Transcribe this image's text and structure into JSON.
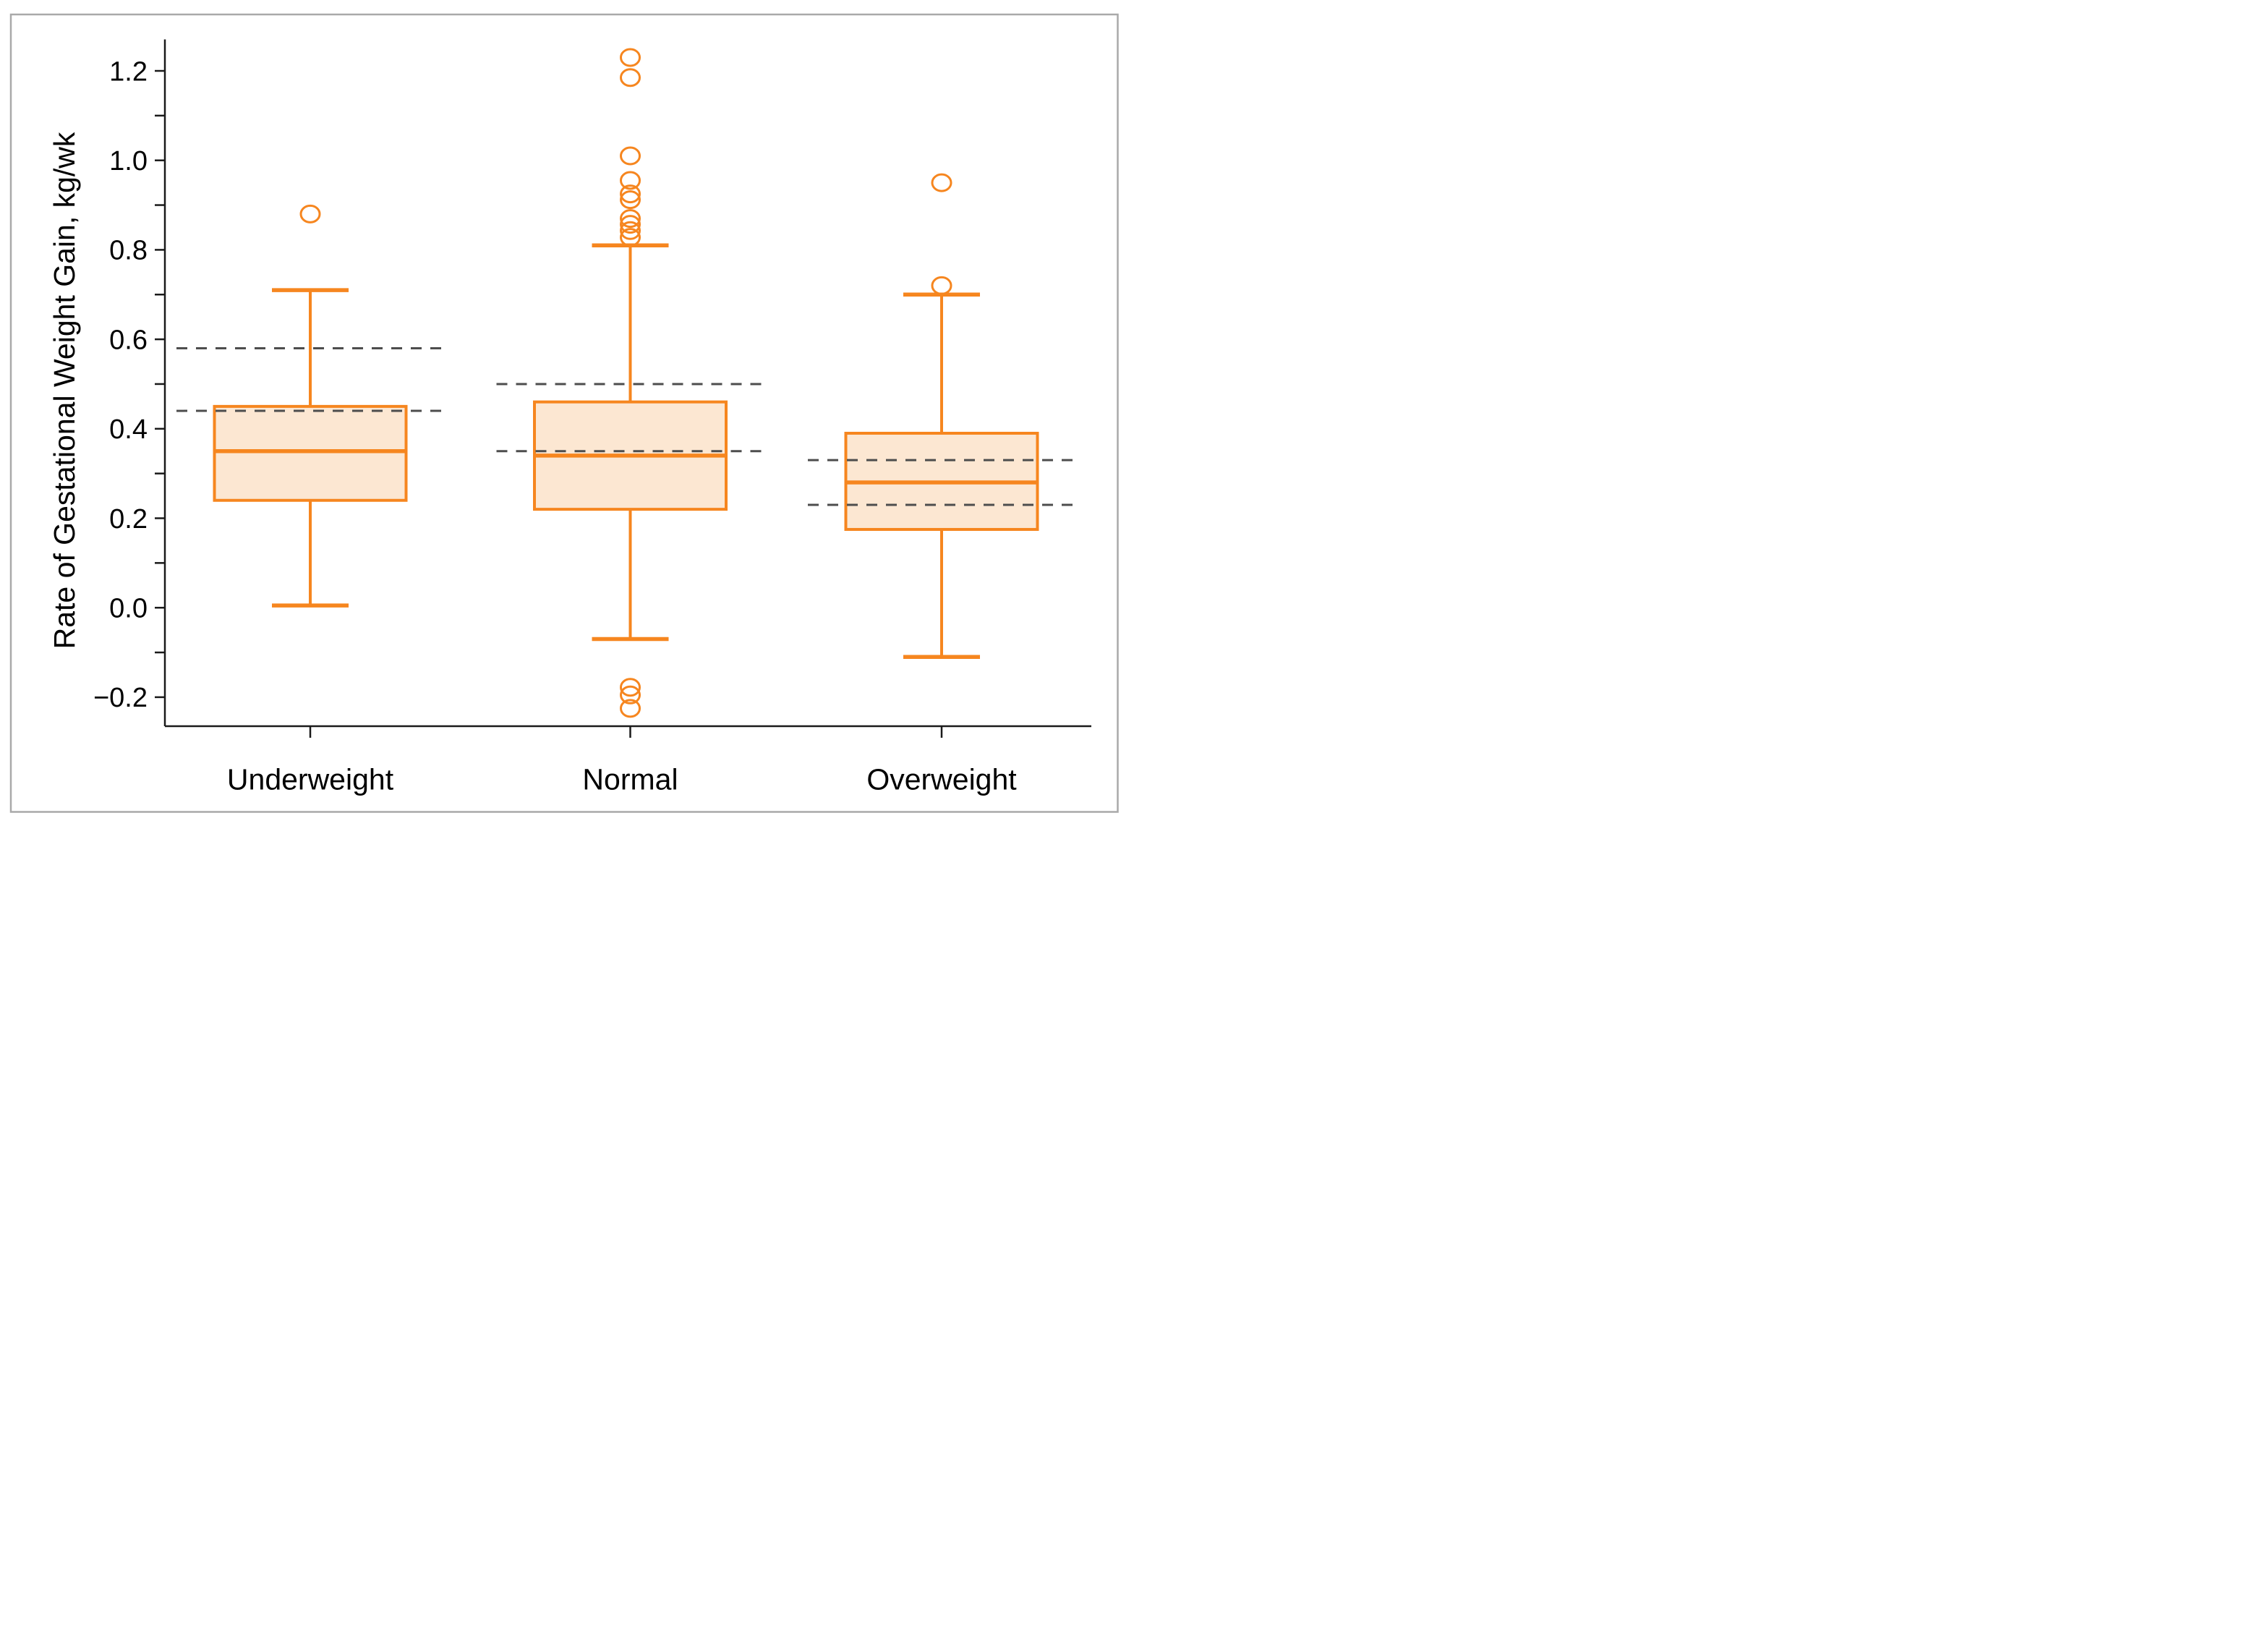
{
  "figure": {
    "background": "#ffffff",
    "border_color": "#a9a9a9"
  },
  "chart_data": {
    "type": "boxplot",
    "title": "",
    "xlabel": "",
    "ylabel": "Rate of Gestational Weight Gain, kg/wk",
    "categories": [
      "Underweight",
      "Normal",
      "Overweight"
    ],
    "ylim": [
      -0.27,
      1.27
    ],
    "grid": false,
    "legend": "none",
    "ytick_labels": [
      "1.2",
      "1.0",
      "0.8",
      "0.6",
      "0.4",
      "0.2",
      "0.0",
      "−0.2"
    ],
    "ytick_values": [
      1.2,
      1.0,
      0.8,
      0.6,
      0.4,
      0.2,
      0.0,
      -0.2
    ],
    "ytick_minor_values": [
      1.1,
      0.9,
      0.7,
      0.5,
      0.3,
      0.1,
      -0.1
    ],
    "series": [
      {
        "category": "Underweight",
        "q1": 0.24,
        "median": 0.35,
        "q3": 0.45,
        "whisker_low": 0.005,
        "whisker_high": 0.71,
        "outliers": [
          0.88
        ],
        "guideline_low": 0.44,
        "guideline_high": 0.58
      },
      {
        "category": "Normal",
        "q1": 0.22,
        "median": 0.34,
        "q3": 0.46,
        "whisker_low": -0.07,
        "whisker_high": 0.81,
        "outliers": [
          1.23,
          1.185,
          1.01,
          0.955,
          0.925,
          0.912,
          0.87,
          0.857,
          0.843,
          0.828,
          -0.178,
          -0.195,
          -0.225
        ],
        "guideline_low": 0.35,
        "guideline_high": 0.5
      },
      {
        "category": "Overweight",
        "q1": 0.175,
        "median": 0.28,
        "q3": 0.39,
        "whisker_low": -0.11,
        "whisker_high": 0.7,
        "outliers": [
          0.95,
          0.72
        ],
        "guideline_low": 0.23,
        "guideline_high": 0.33
      }
    ],
    "colors": {
      "box_stroke": "#f6861f",
      "box_fill": "#fce7d2",
      "median": "#f6861f",
      "whisker": "#f6861f",
      "outlier": "#f6861f",
      "guideline_dash": "#4d4d4d",
      "axis": "#1a1a1a",
      "text": "#000000"
    }
  }
}
